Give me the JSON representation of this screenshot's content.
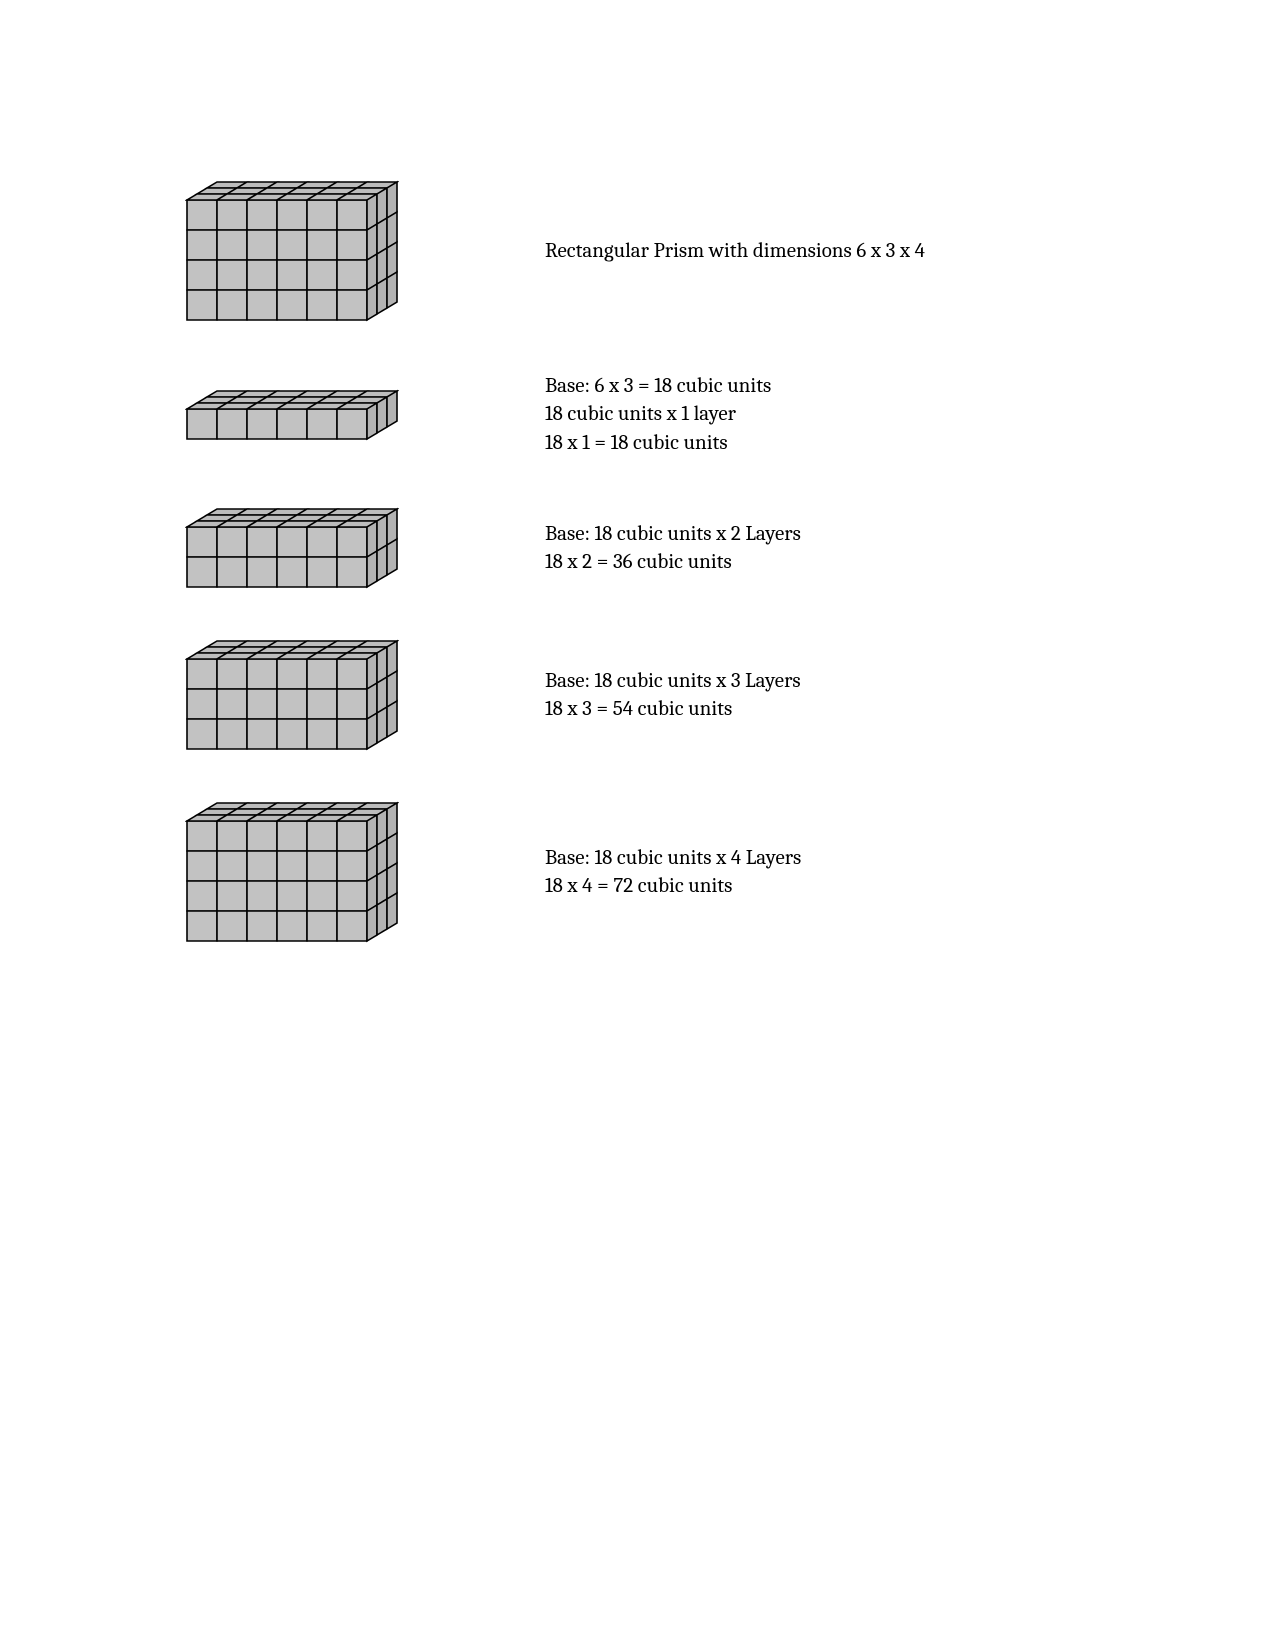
{
  "page": {
    "background_color": "#ffffff",
    "text_color": "#000000",
    "font_size_pt": 16
  },
  "prism_style": {
    "fill_front": "#c2c2c2",
    "fill_top": "#bdbdbd",
    "fill_side": "#b3b3b3",
    "stroke": "#000000",
    "stroke_width": 1.6,
    "unit": 30,
    "skew_dx": 10,
    "skew_dy": 6
  },
  "rows": [
    {
      "prism": {
        "width": 6,
        "depth": 3,
        "height": 4
      },
      "lines": [
        "Rectangular Prism with dimensions 6 x 3 x 4"
      ]
    },
    {
      "prism": {
        "width": 6,
        "depth": 3,
        "height": 1
      },
      "lines": [
        "Base: 6 x 3  = 18 cubic units",
        "18 cubic units x 1 layer",
        "18 x 1 = 18 cubic units"
      ]
    },
    {
      "prism": {
        "width": 6,
        "depth": 3,
        "height": 2
      },
      "lines": [
        "Base: 18 cubic units x 2 Layers",
        "18 x 2 = 36 cubic units"
      ]
    },
    {
      "prism": {
        "width": 6,
        "depth": 3,
        "height": 3
      },
      "lines": [
        "Base: 18 cubic units x 3 Layers",
        "18 x 3 = 54 cubic units"
      ]
    },
    {
      "prism": {
        "width": 6,
        "depth": 3,
        "height": 4
      },
      "lines": [
        "Base: 18 cubic units x 4 Layers",
        "18 x 4 = 72 cubic units"
      ]
    }
  ]
}
